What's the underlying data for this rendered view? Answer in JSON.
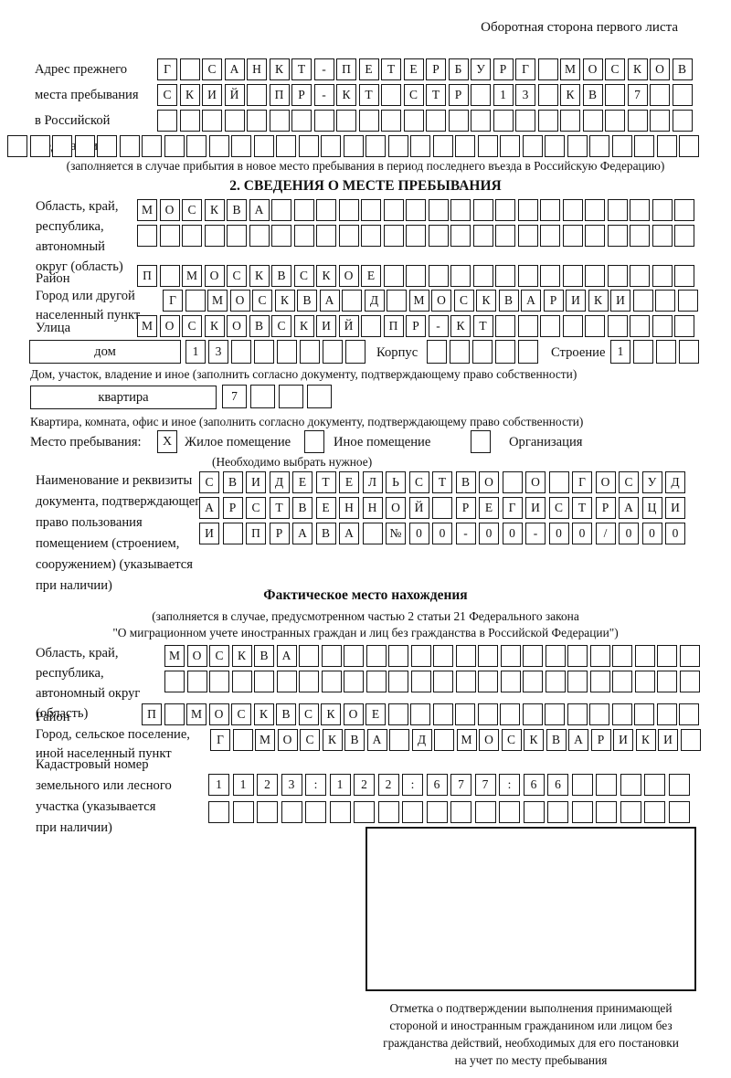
{
  "colors": {
    "ink": "#151515",
    "background": "#ffffff"
  },
  "page_header": "Оборотная сторона первого листа",
  "prev_address": {
    "label": "Адрес прежнего\nместа пребывания\nв Российской\nФедерации",
    "rows": [
      {
        "chars": "Г САНКТ-ПЕТЕРБУРГ МОСКОВ",
        "count": 24
      },
      {
        "chars": "СКИЙ ПР-КТ СТР 13 КВ 7",
        "count": 24
      },
      {
        "chars": "",
        "count": 24
      },
      {
        "chars": "",
        "count": 31
      }
    ],
    "note": "(заполняется в случае прибытия в новое место пребывания в период последнего въезда в Российскую Федерацию)"
  },
  "section2": {
    "title": "2. СВЕДЕНИЯ О МЕСТЕ ПРЕБЫВАНИЯ",
    "region": {
      "label": "Область, край,\nреспублика,\nавтономный\nокруг (область)",
      "rows": [
        {
          "chars": "МОСКВА",
          "count": 25
        },
        {
          "chars": "",
          "count": 25
        }
      ]
    },
    "district": {
      "label": "Район",
      "row": {
        "chars": "П МОСКВСКОЕ",
        "count": 25
      }
    },
    "city": {
      "label": "Город или другой\nнаселенный пункт",
      "row": {
        "chars": "Г МОСКВА Д МОСКВАРИКИ",
        "count": 24
      }
    },
    "street": {
      "label": "Улица",
      "row": {
        "chars": "МОСКОВСКИЙ ПР-КТ",
        "count": 25
      }
    },
    "house": {
      "box_label": "дом",
      "cells": {
        "chars": "13",
        "count": 8
      },
      "korpus_label": "Корпус",
      "korpus_cells": {
        "chars": "",
        "count": 5
      },
      "stroenie_label": "Строение",
      "stroenie_cells": {
        "chars": "1",
        "count": 4
      },
      "note": "Дом, участок, владение и иное (заполнить согласно документу, подтверждающему право собственности)"
    },
    "apartment": {
      "box_label": "квартира",
      "cells": {
        "chars": "7",
        "count": 4
      },
      "note": "Квартира, комната, офис и иное (заполнить согласно документу, подтверждающему право собственности)"
    },
    "stay_type": {
      "label": "Место пребывания:",
      "options": [
        {
          "label": "Жилое помещение",
          "mark": "X"
        },
        {
          "label": "Иное помещение",
          "mark": ""
        },
        {
          "label": "Организация",
          "mark": ""
        }
      ],
      "note": "(Необходимо выбрать нужное)"
    },
    "document": {
      "label": "Наименование и реквизиты\nдокумента, подтверждающего\nправо пользования\nпомещением (строением,\nсооружением) (указывается\nпри наличии)",
      "rows": [
        {
          "chars": "СВИДЕТЕЛЬСТВО О ГОСУД",
          "count": 21
        },
        {
          "chars": "АРСТВЕННОЙ РЕГИСТРАЦИ",
          "count": 21
        },
        {
          "chars": "И ПРАВА №00-00-00/000",
          "count": 21
        }
      ]
    }
  },
  "actual_location": {
    "title": "Фактическое место нахождения",
    "note_line1": "(заполняется в случае, предусмотренном частью 2 статьи 21 Федерального закона",
    "note_line2": "\"О миграционном учете иностранных граждан и лиц без гражданства в Российской Федерации\")",
    "region": {
      "label": "Область, край,\nреспублика,\nавтономный округ\n(область)",
      "rows": [
        {
          "chars": "МОСКВА",
          "count": 24
        },
        {
          "chars": "",
          "count": 24
        }
      ]
    },
    "district": {
      "label": "Район",
      "row": {
        "chars": "П МОСКВСКОЕ",
        "count": 25
      }
    },
    "city": {
      "label": "Город, сельское поселение,\nиной населенный пункт",
      "row": {
        "chars": "Г МОСКВА Д МОСКВАРИКИ",
        "count": 22
      }
    },
    "cadastre": {
      "label": "Кадастровый номер\nземельного или лесного\nучастка (указывается\nпри наличии)",
      "rows": [
        {
          "chars": "1123:122:677:66",
          "count": 20
        },
        {
          "chars": "",
          "count": 20
        }
      ]
    }
  },
  "stamp": {
    "caption": "Отметка о подтверждении выполнения принимающей\nстороной и иностранным гражданином или лицом без\nгражданства действий, необходимых для его постановки\nна учет по месту пребывания"
  }
}
